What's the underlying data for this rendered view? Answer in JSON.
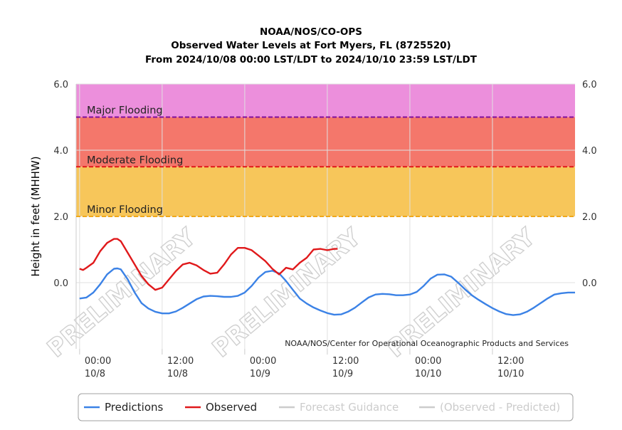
{
  "chart_data": {
    "type": "line",
    "title_lines": [
      "NOAA/NOS/CO-OPS",
      "Observed Water Levels at Fort Myers, FL (8725520)",
      "From 2024/10/08 00:00 LST/LDT to 2024/10/10 23:59 LST/LDT"
    ],
    "ylabel": "Height in feet (MHHW)",
    "ylim": [
      -2.0,
      6.0
    ],
    "xlim_hours": [
      -0.5,
      72
    ],
    "y_ticks": [
      {
        "value": 6.0,
        "label": "6.0"
      },
      {
        "value": 4.0,
        "label": "4.0"
      },
      {
        "value": 2.0,
        "label": "2.0"
      },
      {
        "value": 0.0,
        "label": "0.0"
      }
    ],
    "x_ticks": [
      {
        "hour": 0,
        "time": "00:00",
        "date": "10/8"
      },
      {
        "hour": 12,
        "time": "12:00",
        "date": "10/8"
      },
      {
        "hour": 24,
        "time": "00:00",
        "date": "10/9"
      },
      {
        "hour": 36,
        "time": "12:00",
        "date": "10/9"
      },
      {
        "hour": 48,
        "time": "00:00",
        "date": "10/10"
      },
      {
        "hour": 60,
        "time": "12:00",
        "date": "10/10"
      }
    ],
    "flood_bands": [
      {
        "label": "Major Flooding",
        "from": 5.0,
        "to": 6.0,
        "fill": "#ec8fdc",
        "line_color": "#7f0f9e"
      },
      {
        "label": "Moderate Flooding",
        "from": 3.5,
        "to": 5.0,
        "fill": "#f4776b",
        "line_color": "#e01818"
      },
      {
        "label": "Minor Flooding",
        "from": 2.0,
        "to": 3.5,
        "fill": "#f7c65a",
        "line_color": "#f0a81a"
      }
    ],
    "series": [
      {
        "name": "Predictions",
        "color": "#3b82e6",
        "x": [
          0,
          1,
          2,
          3,
          4,
          5,
          5.5,
          6,
          7,
          8,
          9,
          10,
          11,
          12,
          13,
          14,
          15,
          16,
          17,
          18,
          19,
          20,
          21,
          22,
          23,
          24,
          25,
          26,
          27,
          28,
          29,
          30,
          31,
          32,
          33,
          34,
          35,
          36,
          37,
          38,
          39,
          40,
          41,
          42,
          43,
          44,
          45,
          46,
          47,
          48,
          49,
          50,
          51,
          52,
          53,
          54,
          55,
          56,
          57,
          58,
          59,
          60,
          61,
          62,
          63,
          64,
          65,
          66,
          67,
          68,
          69,
          70,
          71,
          72
        ],
        "y": [
          -0.48,
          -0.45,
          -0.3,
          -0.05,
          0.25,
          0.42,
          0.43,
          0.4,
          0.1,
          -0.3,
          -0.62,
          -0.78,
          -0.88,
          -0.93,
          -0.93,
          -0.87,
          -0.76,
          -0.63,
          -0.5,
          -0.42,
          -0.4,
          -0.41,
          -0.43,
          -0.43,
          -0.4,
          -0.3,
          -0.1,
          0.15,
          0.32,
          0.36,
          0.28,
          0.05,
          -0.22,
          -0.48,
          -0.63,
          -0.75,
          -0.84,
          -0.92,
          -0.97,
          -0.96,
          -0.88,
          -0.76,
          -0.6,
          -0.45,
          -0.36,
          -0.34,
          -0.35,
          -0.38,
          -0.38,
          -0.36,
          -0.28,
          -0.1,
          0.12,
          0.24,
          0.25,
          0.18,
          0.0,
          -0.2,
          -0.38,
          -0.52,
          -0.65,
          -0.77,
          -0.87,
          -0.95,
          -0.98,
          -0.96,
          -0.88,
          -0.76,
          -0.62,
          -0.48,
          -0.36,
          -0.32,
          -0.3,
          -0.3
        ]
      },
      {
        "name": "Observed",
        "color": "#e0191b",
        "x": [
          0,
          0.5,
          1,
          2,
          3,
          4,
          5,
          5.5,
          6,
          7,
          8,
          9,
          10,
          11,
          12,
          13,
          14,
          15,
          16,
          17,
          18,
          19,
          20,
          21,
          22,
          23,
          24,
          25,
          26,
          27,
          28,
          29,
          30,
          31,
          32,
          33,
          34,
          35,
          35.5,
          36,
          36.5,
          37,
          37.5
        ],
        "y": [
          0.42,
          0.38,
          0.45,
          0.6,
          0.95,
          1.2,
          1.32,
          1.32,
          1.25,
          0.9,
          0.55,
          0.2,
          -0.05,
          -0.22,
          -0.15,
          0.1,
          0.35,
          0.55,
          0.6,
          0.52,
          0.38,
          0.27,
          0.3,
          0.55,
          0.85,
          1.05,
          1.05,
          0.98,
          0.82,
          0.65,
          0.42,
          0.25,
          0.45,
          0.4,
          0.6,
          0.75,
          1.0,
          1.02,
          1.0,
          0.98,
          1.0,
          1.02,
          1.02
        ]
      }
    ],
    "legend": [
      {
        "label": "Predictions",
        "color": "#3b82e6",
        "active": true
      },
      {
        "label": "Observed",
        "color": "#e0191b",
        "active": true
      },
      {
        "label": "Forecast Guidance",
        "color": "#cccccc",
        "active": false
      },
      {
        "label": "(Observed - Predicted)",
        "color": "#cccccc",
        "active": false
      }
    ],
    "legend_placement": "bottom",
    "grid": true,
    "credit": "NOAA/NOS/Center for Operational Oceanographic Products and Services",
    "watermark": "PRELIMINARY"
  }
}
